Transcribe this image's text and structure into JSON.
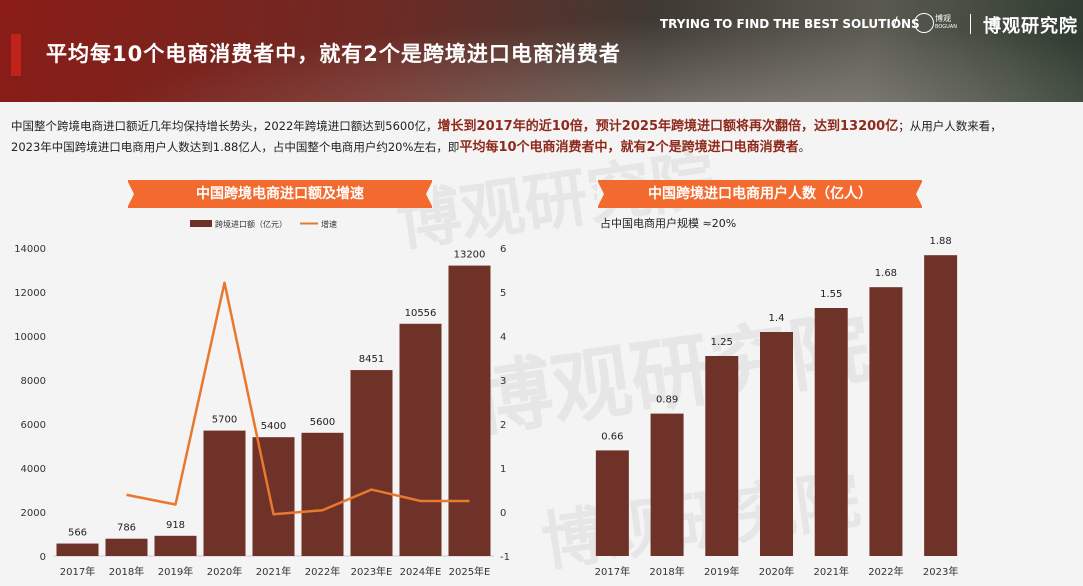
{
  "header": {
    "title": "平均每10个电商消费者中，就有2个是跨境进口电商消费者",
    "tagline": "TRYING TO FIND THE BEST SOLUTIONS",
    "slash": "/",
    "logo_text": "博观",
    "logo_en": "BOGUAN",
    "brand": "博观研究院"
  },
  "intro": {
    "p1": "中国整个跨境电商进口额近几年均保持增长势头，2022年跨境进口额达到5600亿，",
    "p2": "增长到2017年的近10倍，预计2025年跨境进口额将再次翻倍，达到13200亿",
    "p3": "；从用户人数来看，2023年中国跨境进口电商用户人数达到1.88亿人，占中国整个电商用户约20%左右，即",
    "p4": "平均每10个电商消费者中，就有2个是跨境进口电商消费者",
    "p5": "。"
  },
  "watermark": "博观研究院",
  "colors": {
    "bar": "#6e3228",
    "line": "#e8782e",
    "banner": "#f26a2e",
    "accent_red": "#c0221c"
  },
  "chart_data": [
    {
      "type": "bar",
      "title": "中国跨境电商进口额及增速",
      "categories": [
        "2017年",
        "2018年",
        "2019年",
        "2020年",
        "2021年",
        "2022年",
        "2023年E",
        "2024年E",
        "2025年E"
      ],
      "series": [
        {
          "name": "跨境进口额（亿元）",
          "type": "bar",
          "axis": "left",
          "values": [
            566,
            786,
            918,
            5700,
            5400,
            5600,
            8451,
            10556,
            13200
          ]
        },
        {
          "name": "增速",
          "type": "line",
          "axis": "right",
          "values": [
            null,
            0.39,
            0.17,
            5.21,
            -0.05,
            0.04,
            0.51,
            0.25,
            0.25
          ]
        }
      ],
      "ylim": [
        0,
        14000
      ],
      "yticks": [
        0,
        2000,
        4000,
        6000,
        8000,
        10000,
        12000,
        14000
      ],
      "y2lim": [
        -1,
        6
      ],
      "y2ticks": [
        -1,
        0,
        1,
        2,
        3,
        4,
        5,
        6
      ],
      "legend": "top"
    },
    {
      "type": "bar",
      "title": "中国跨境进口电商用户人数（亿人）",
      "annotation": "占中国电商用户规模 ≈20%",
      "categories": [
        "2017年",
        "2018年",
        "2019年",
        "2020年",
        "2021年",
        "2022年",
        "2023年"
      ],
      "values": [
        0.66,
        0.89,
        1.25,
        1.4,
        1.55,
        1.68,
        1.88
      ],
      "ylim": [
        0,
        2.0
      ],
      "axes_visible": false
    }
  ]
}
